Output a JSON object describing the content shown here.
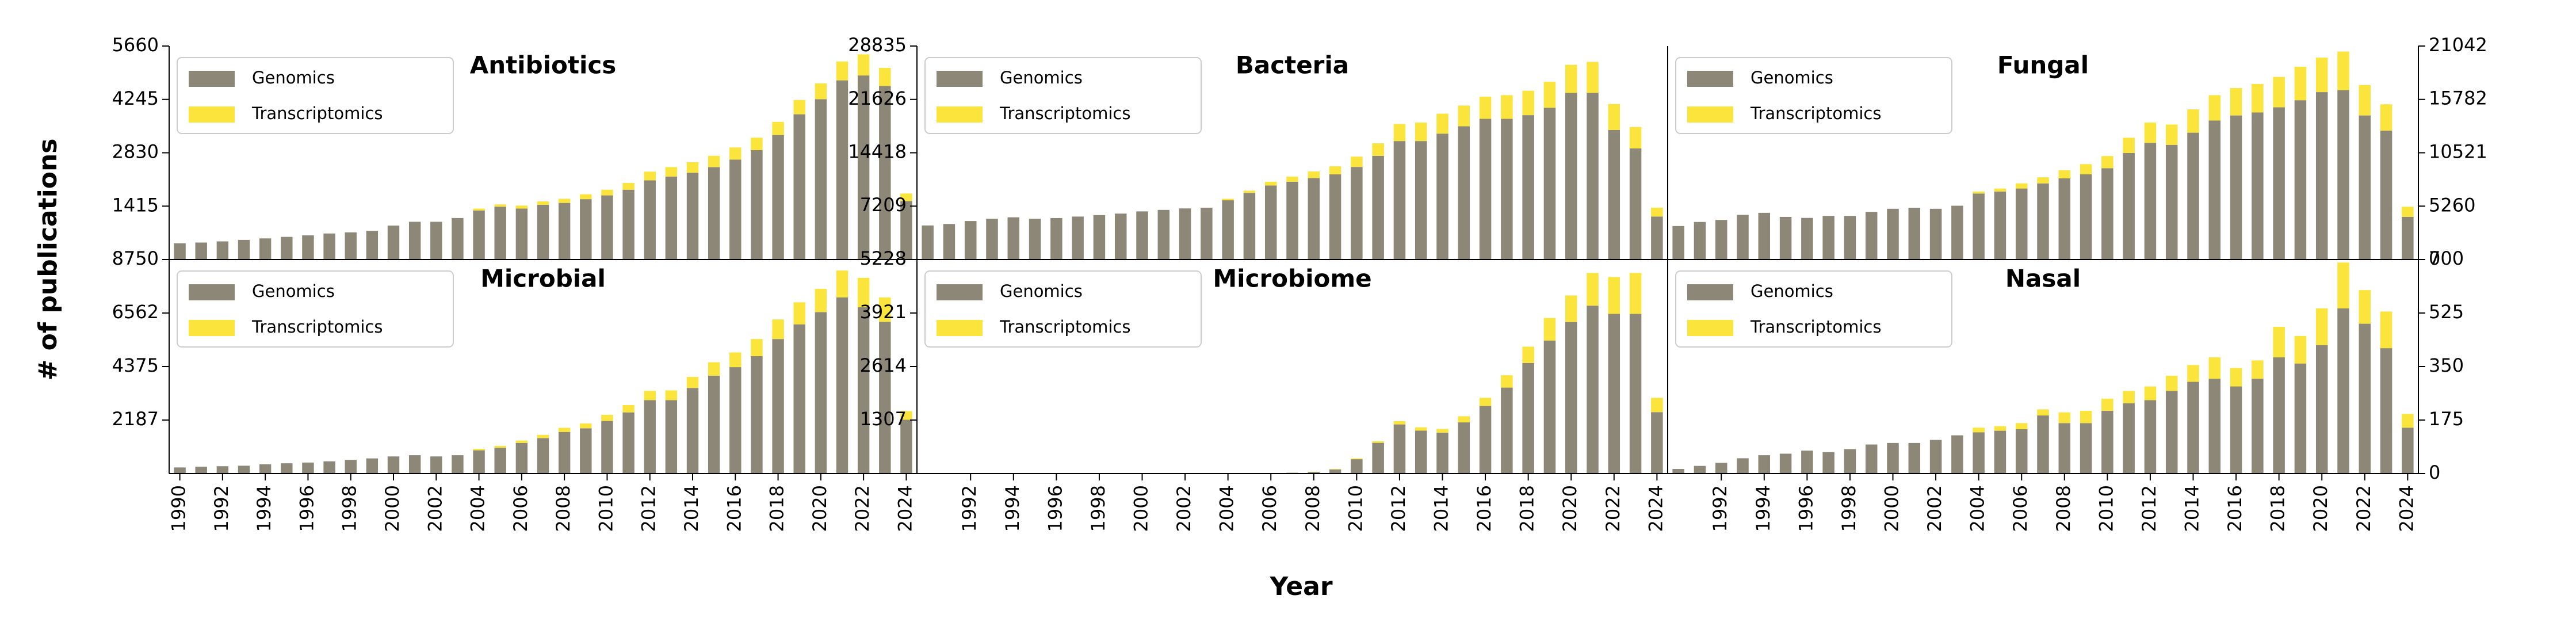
{
  "ylabel": "# of publications",
  "xlabel": "Year",
  "chart_data": [
    {
      "type": "bar",
      "stacked": true,
      "title": "Antibiotics",
      "x": [
        1990,
        1991,
        1992,
        1993,
        1994,
        1995,
        1996,
        1997,
        1998,
        1999,
        2000,
        2001,
        2002,
        2003,
        2004,
        2005,
        2006,
        2007,
        2008,
        2009,
        2010,
        2011,
        2012,
        2013,
        2014,
        2015,
        2016,
        2017,
        2018,
        2019,
        2020,
        2021,
        2022,
        2023,
        2024
      ],
      "xlim": [
        1989.5,
        2024.5
      ],
      "ylim": [
        0,
        5660
      ],
      "yticks": [
        1415,
        2830,
        4245,
        5660
      ],
      "series": [
        {
          "name": "Genomics",
          "color": "#8c8777",
          "values": [
            430,
            450,
            480,
            520,
            560,
            600,
            640,
            690,
            720,
            760,
            900,
            1000,
            1000,
            1100,
            1300,
            1400,
            1350,
            1450,
            1500,
            1600,
            1700,
            1850,
            2100,
            2200,
            2300,
            2450,
            2650,
            2900,
            3300,
            3850,
            4250,
            4750,
            4880,
            4600,
            1550
          ]
        },
        {
          "name": "Transcriptomics",
          "color": "#fbe43c",
          "values": [
            0,
            0,
            0,
            0,
            0,
            0,
            0,
            0,
            0,
            0,
            0,
            0,
            0,
            0,
            50,
            60,
            80,
            90,
            110,
            130,
            150,
            180,
            230,
            250,
            280,
            300,
            320,
            330,
            350,
            380,
            420,
            500,
            560,
            480,
            200
          ]
        }
      ]
    },
    {
      "type": "bar",
      "stacked": true,
      "title": "Bacteria",
      "x": [
        1990,
        1991,
        1992,
        1993,
        1994,
        1995,
        1996,
        1997,
        1998,
        1999,
        2000,
        2001,
        2002,
        2003,
        2004,
        2005,
        2006,
        2007,
        2008,
        2009,
        2010,
        2011,
        2012,
        2013,
        2014,
        2015,
        2016,
        2017,
        2018,
        2019,
        2020,
        2021,
        2022,
        2023,
        2024
      ],
      "xlim": [
        1989.5,
        2024.5
      ],
      "ylim": [
        0,
        28835
      ],
      "yticks": [
        7209,
        14418,
        21626,
        28835
      ],
      "series": [
        {
          "name": "Genomics",
          "color": "#8c8777",
          "values": [
            4600,
            4800,
            5200,
            5500,
            5700,
            5500,
            5600,
            5800,
            6000,
            6200,
            6500,
            6700,
            6900,
            7000,
            8000,
            9000,
            10000,
            10500,
            11000,
            11500,
            12500,
            14000,
            16000,
            16000,
            17000,
            18000,
            19000,
            19000,
            19500,
            20500,
            22500,
            22500,
            17500,
            15000,
            5800
          ]
        },
        {
          "name": "Transcriptomics",
          "color": "#fbe43c",
          "values": [
            0,
            0,
            0,
            0,
            0,
            0,
            0,
            0,
            0,
            0,
            0,
            0,
            0,
            0,
            200,
            300,
            500,
            700,
            900,
            1100,
            1400,
            1700,
            2300,
            2500,
            2700,
            2800,
            3000,
            3200,
            3300,
            3500,
            3800,
            4200,
            3500,
            2900,
            1200
          ]
        }
      ]
    },
    {
      "type": "bar",
      "stacked": true,
      "title": "Fungal",
      "x": [
        1990,
        1991,
        1992,
        1993,
        1994,
        1995,
        1996,
        1997,
        1998,
        1999,
        2000,
        2001,
        2002,
        2003,
        2004,
        2005,
        2006,
        2007,
        2008,
        2009,
        2010,
        2011,
        2012,
        2013,
        2014,
        2015,
        2016,
        2017,
        2018,
        2019,
        2020,
        2021,
        2022,
        2023,
        2024
      ],
      "xlim": [
        1989.5,
        2024.5
      ],
      "ylim": [
        0,
        21042
      ],
      "yticks": [
        0,
        5260,
        10521,
        15782,
        21042
      ],
      "series": [
        {
          "name": "Genomics",
          "color": "#8c8777",
          "values": [
            3300,
            3700,
            3900,
            4400,
            4600,
            4200,
            4100,
            4300,
            4300,
            4700,
            5000,
            5100,
            5000,
            5300,
            6500,
            6700,
            7000,
            7500,
            8000,
            8400,
            9000,
            10500,
            11500,
            11300,
            12500,
            13700,
            14200,
            14500,
            15000,
            15700,
            16500,
            16700,
            14200,
            12700,
            4200
          ]
        },
        {
          "name": "Transcriptomics",
          "color": "#fbe43c",
          "values": [
            0,
            0,
            0,
            0,
            0,
            0,
            0,
            0,
            0,
            0,
            0,
            0,
            0,
            0,
            200,
            300,
            500,
            600,
            800,
            1000,
            1200,
            1500,
            2000,
            2000,
            2300,
            2500,
            2700,
            2800,
            3000,
            3300,
            3400,
            3800,
            3000,
            2600,
            1000
          ]
        }
      ]
    },
    {
      "type": "bar",
      "stacked": true,
      "title": "Microbial",
      "x": [
        1990,
        1991,
        1992,
        1993,
        1994,
        1995,
        1996,
        1997,
        1998,
        1999,
        2000,
        2001,
        2002,
        2003,
        2004,
        2005,
        2006,
        2007,
        2008,
        2009,
        2010,
        2011,
        2012,
        2013,
        2014,
        2015,
        2016,
        2017,
        2018,
        2019,
        2020,
        2021,
        2022,
        2023,
        2024
      ],
      "xlim": [
        1989.5,
        2024.5
      ],
      "ylim": [
        0,
        8750
      ],
      "yticks": [
        2187,
        4375,
        6562,
        8750
      ],
      "xticks": [
        1990,
        1992,
        1994,
        1996,
        1998,
        2000,
        2002,
        2004,
        2006,
        2008,
        2010,
        2012,
        2014,
        2016,
        2018,
        2020,
        2022,
        2024
      ],
      "series": [
        {
          "name": "Genomics",
          "color": "#8c8777",
          "values": [
            250,
            280,
            300,
            320,
            380,
            420,
            450,
            500,
            560,
            620,
            700,
            750,
            700,
            750,
            950,
            1050,
            1250,
            1450,
            1700,
            1850,
            2150,
            2500,
            3000,
            3000,
            3500,
            4000,
            4350,
            4800,
            5500,
            6100,
            6600,
            7200,
            6800,
            6200,
            2200
          ]
        },
        {
          "name": "Transcriptomics",
          "color": "#fbe43c",
          "values": [
            0,
            0,
            0,
            0,
            0,
            0,
            0,
            0,
            0,
            0,
            0,
            0,
            0,
            0,
            60,
            80,
            100,
            130,
            170,
            200,
            250,
            300,
            380,
            400,
            450,
            550,
            600,
            700,
            800,
            900,
            950,
            1100,
            1200,
            1000,
            350
          ]
        }
      ]
    },
    {
      "type": "bar",
      "stacked": true,
      "title": "Microbiome",
      "x": [
        1990,
        1991,
        1992,
        1993,
        1994,
        1995,
        1996,
        1997,
        1998,
        1999,
        2000,
        2001,
        2002,
        2003,
        2004,
        2005,
        2006,
        2007,
        2008,
        2009,
        2010,
        2011,
        2012,
        2013,
        2014,
        2015,
        2016,
        2017,
        2018,
        2019,
        2020,
        2021,
        2022,
        2023,
        2024
      ],
      "xlim": [
        1989.5,
        2024.5
      ],
      "ylim": [
        0,
        5228
      ],
      "yticks": [
        1307,
        2614,
        3921,
        5228
      ],
      "xticks": [
        1992,
        1994,
        1996,
        1998,
        2000,
        2002,
        2004,
        2006,
        2008,
        2010,
        2012,
        2014,
        2016,
        2018,
        2020,
        2022,
        2024
      ],
      "series": [
        {
          "name": "Genomics",
          "color": "#8c8777",
          "values": [
            0,
            0,
            0,
            0,
            0,
            0,
            0,
            0,
            0,
            0,
            0,
            0,
            0,
            0,
            0,
            0,
            10,
            20,
            40,
            100,
            350,
            750,
            1200,
            1050,
            1000,
            1250,
            1650,
            2100,
            2700,
            3250,
            3700,
            4100,
            3900,
            3900,
            1500
          ]
        },
        {
          "name": "Transcriptomics",
          "color": "#fbe43c",
          "values": [
            0,
            0,
            0,
            0,
            0,
            0,
            0,
            0,
            0,
            0,
            0,
            0,
            0,
            0,
            0,
            0,
            0,
            2,
            5,
            10,
            20,
            40,
            80,
            80,
            90,
            150,
            200,
            300,
            400,
            550,
            650,
            800,
            900,
            1000,
            350
          ]
        }
      ]
    },
    {
      "type": "bar",
      "stacked": true,
      "title": "Nasal",
      "x": [
        1990,
        1991,
        1992,
        1993,
        1994,
        1995,
        1996,
        1997,
        1998,
        1999,
        2000,
        2001,
        2002,
        2003,
        2004,
        2005,
        2006,
        2007,
        2008,
        2009,
        2010,
        2011,
        2012,
        2013,
        2014,
        2015,
        2016,
        2017,
        2018,
        2019,
        2020,
        2021,
        2022,
        2023,
        2024
      ],
      "xlim": [
        1989.5,
        2024.5
      ],
      "ylim": [
        0,
        700
      ],
      "yticks": [
        0,
        175,
        350,
        525,
        700
      ],
      "xticks": [
        1992,
        1994,
        1996,
        1998,
        2000,
        2002,
        2004,
        2006,
        2008,
        2010,
        2012,
        2014,
        2016,
        2018,
        2020,
        2022,
        2024
      ],
      "series": [
        {
          "name": "Genomics",
          "color": "#8c8777",
          "values": [
            15,
            25,
            35,
            50,
            60,
            65,
            75,
            70,
            80,
            95,
            100,
            100,
            110,
            125,
            135,
            140,
            145,
            190,
            165,
            165,
            205,
            230,
            240,
            270,
            300,
            310,
            285,
            310,
            380,
            360,
            420,
            540,
            490,
            410,
            150
          ]
        },
        {
          "name": "Transcriptomics",
          "color": "#fbe43c",
          "values": [
            0,
            0,
            0,
            0,
            0,
            0,
            0,
            0,
            0,
            0,
            0,
            0,
            0,
            0,
            15,
            15,
            20,
            20,
            35,
            40,
            40,
            40,
            45,
            50,
            55,
            70,
            60,
            60,
            100,
            90,
            120,
            150,
            110,
            120,
            45
          ]
        }
      ]
    }
  ]
}
